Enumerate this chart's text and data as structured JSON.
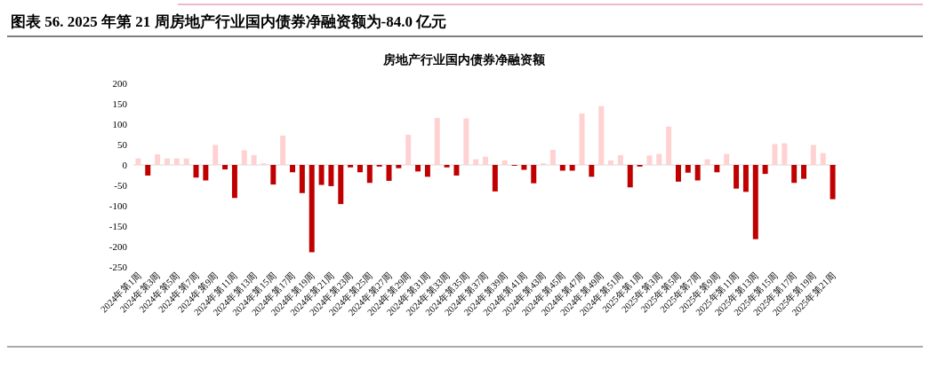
{
  "chart_data": {
    "type": "bar",
    "title": "图表 56. 2025 年第 21 周房地产行业国内债券净融资额为-84.0 亿元",
    "subtitle": "房地产行业国内债券净融资额",
    "categories": [
      "2024年第1周",
      null,
      "2024年第3周",
      null,
      "2024年第5周",
      null,
      "2024年第7周",
      null,
      "2024年第9周",
      null,
      "2024年第11周",
      null,
      "2024年第13周",
      null,
      "2024年第15周",
      null,
      "2024年第17周",
      null,
      "2024年第19周",
      null,
      "2024年第21周",
      null,
      "2024年第23周",
      null,
      "2024年第25周",
      null,
      "2024年第27周",
      null,
      "2024年第29周",
      null,
      "2024年第31周",
      null,
      "2024年第33周",
      null,
      "2024年第35周",
      null,
      "2024年第37周",
      null,
      "2024年第39周",
      null,
      "2024年第41周",
      null,
      "2024年第43周",
      null,
      "2024年第45周",
      null,
      "2024年第47周",
      null,
      "2024年第49周",
      null,
      "2024年第51周",
      null,
      "2025年第1周",
      null,
      "2025年第3周",
      null,
      "2025年第5周",
      null,
      "2025年第7周",
      null,
      "2025年第9周",
      null,
      "2025年第11周",
      null,
      "2025年第13周",
      null,
      "2025年第15周",
      null,
      "2025年第17周",
      null,
      "2025年第19周",
      null,
      "2025年第21周"
    ],
    "values": [
      16,
      -26,
      26,
      16,
      16,
      16,
      -31,
      -38,
      49,
      -11,
      -81,
      36,
      24,
      4,
      -48,
      72,
      -18,
      -69,
      -214,
      -49,
      -52,
      -96,
      -6,
      -18,
      -44,
      -4,
      -39,
      -8,
      74,
      -16,
      -29,
      115,
      -6,
      -26,
      114,
      14,
      20,
      -65,
      11,
      -2,
      -12,
      -45,
      4,
      37,
      -14,
      -14,
      126,
      -29,
      144,
      11,
      24,
      -55,
      -4,
      23,
      27,
      94,
      -41,
      -19,
      -38,
      14,
      -18,
      27,
      -58,
      -66,
      -182,
      -22,
      51,
      53,
      -44,
      -34,
      49,
      29,
      -84
    ],
    "colors": [
      "#ffd1d1",
      "#c00000",
      "#ffd1d1",
      "#ffd1d1",
      "#ffd1d1",
      "#ffd1d1",
      "#c00000",
      "#c00000",
      "#ffd1d1",
      "#c00000",
      "#c00000",
      "#ffd1d1",
      "#ffd1d1",
      "#ffd1d1",
      "#c00000",
      "#ffd1d1",
      "#c00000",
      "#c00000",
      "#c00000",
      "#c00000",
      "#c00000",
      "#c00000",
      "#c00000",
      "#c00000",
      "#c00000",
      "#c00000",
      "#c00000",
      "#c00000",
      "#ffd1d1",
      "#c00000",
      "#c00000",
      "#ffd1d1",
      "#c00000",
      "#c00000",
      "#ffd1d1",
      "#ffd1d1",
      "#ffd1d1",
      "#c00000",
      "#ffd1d1",
      "#c00000",
      "#c00000",
      "#c00000",
      "#ffd1d1",
      "#ffd1d1",
      "#c00000",
      "#c00000",
      "#ffd1d1",
      "#c00000",
      "#ffd1d1",
      "#ffd1d1",
      "#ffd1d1",
      "#c00000",
      "#c00000",
      "#ffd1d1",
      "#ffd1d1",
      "#ffd1d1",
      "#c00000",
      "#c00000",
      "#c00000",
      "#ffd1d1",
      "#c00000",
      "#ffd1d1",
      "#c00000",
      "#c00000",
      "#c00000",
      "#c00000",
      "#ffd1d1",
      "#ffd1d1",
      "#c00000",
      "#c00000",
      "#ffd1d1",
      "#ffd1d1",
      "#c00000"
    ],
    "ylim": [
      -250,
      200
    ],
    "yticks": [
      -250,
      -200,
      -150,
      -100,
      -50,
      0,
      50,
      100,
      150,
      200
    ]
  }
}
